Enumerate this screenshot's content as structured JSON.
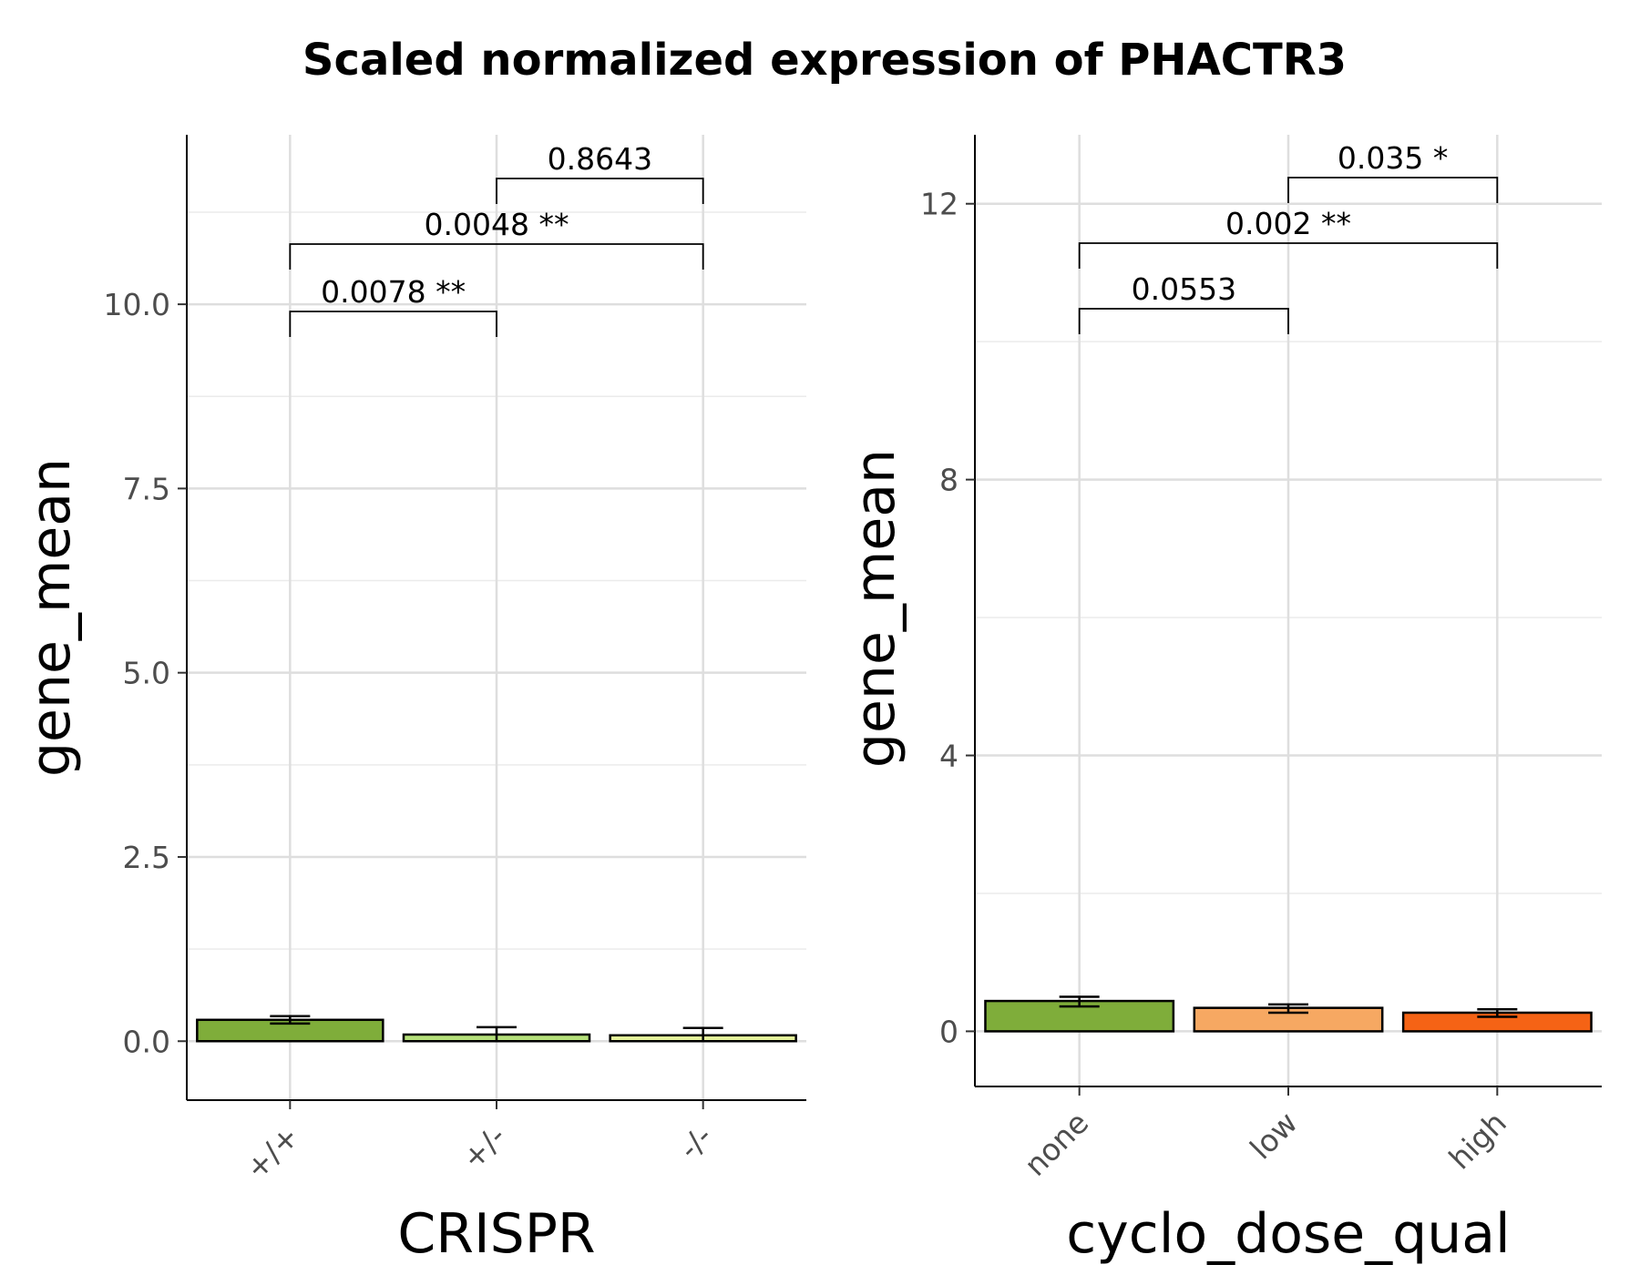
{
  "title": "Scaled normalized expression of PHACTR3",
  "chart_data": [
    {
      "type": "bar",
      "xlabel": "CRISPR",
      "ylabel": "gene_mean",
      "ylim": [
        -0.8,
        12.3
      ],
      "yticks": [
        0.0,
        2.5,
        5.0,
        7.5,
        10.0
      ],
      "ytick_labels": [
        "0.0",
        "2.5",
        "5.0",
        "7.5",
        "10.0"
      ],
      "grid": true,
      "categories": [
        "+/+",
        "+/-",
        "-/-"
      ],
      "values": [
        0.29,
        0.09,
        0.08
      ],
      "error_low": [
        0.24,
        0.0,
        0.0
      ],
      "error_high": [
        0.34,
        0.19,
        0.18
      ],
      "colors": [
        "#7fad3a",
        "#b5e07a",
        "#e4f29a"
      ],
      "comparisons": [
        {
          "from": 0,
          "to": 1,
          "label": "0.0078 **",
          "level": 0
        },
        {
          "from": 0,
          "to": 2,
          "label": "0.0048 **",
          "level": 1
        },
        {
          "from": 1,
          "to": 2,
          "label": "0.8643",
          "level": 2
        }
      ]
    },
    {
      "type": "bar",
      "xlabel": "cyclo_dose_qual",
      "ylabel": "gene_mean",
      "ylim": [
        -0.8,
        13.0
      ],
      "yticks": [
        0,
        4,
        8,
        12
      ],
      "ytick_labels": [
        "0",
        "4",
        "8",
        "12"
      ],
      "grid": true,
      "categories": [
        "none",
        "low",
        "high"
      ],
      "values": [
        0.44,
        0.34,
        0.27
      ],
      "error_low": [
        0.36,
        0.27,
        0.21
      ],
      "error_high": [
        0.5,
        0.39,
        0.32
      ],
      "colors": [
        "#7fad3a",
        "#f6a862",
        "#f56315"
      ],
      "comparisons": [
        {
          "from": 0,
          "to": 1,
          "label": "0.0553",
          "level": 0
        },
        {
          "from": 0,
          "to": 2,
          "label": "0.002 **",
          "level": 1
        },
        {
          "from": 1,
          "to": 2,
          "label": "0.035 *",
          "level": 2
        }
      ]
    }
  ]
}
